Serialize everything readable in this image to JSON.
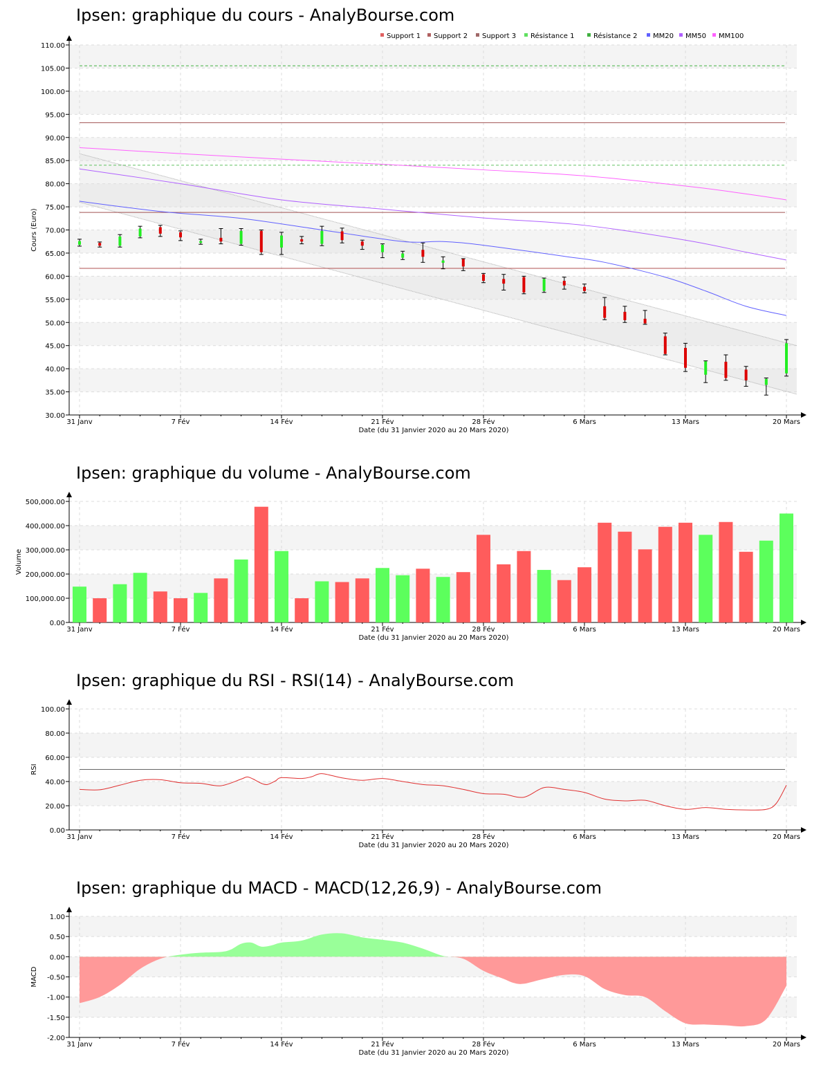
{
  "chart_data": [
    {
      "type": "candlestick",
      "title": "Ipsen: graphique du cours - AnalyBourse.com",
      "xlabel": "Date (du 31 Janvier 2020 au 20 Mars 2020)",
      "ylabel": "Cours (Euro)",
      "ylim": [
        30,
        110
      ],
      "yticks": [
        "30.00",
        "35.00",
        "40.00",
        "45.00",
        "50.00",
        "55.00",
        "60.00",
        "65.00",
        "70.00",
        "75.00",
        "80.00",
        "85.00",
        "90.00",
        "95.00",
        "100.00",
        "105.00",
        "110.00"
      ],
      "xtick_labels": [
        "31 Janv",
        "7 Fév",
        "14 Fév",
        "21 Fév",
        "28 Fév",
        "6 Mars",
        "13 Mars",
        "20 Mars"
      ],
      "xtick_days": [
        0,
        5,
        10,
        15,
        20,
        25,
        30,
        35
      ],
      "legend": [
        "Support 1",
        "Support 2",
        "Support 3",
        "Résistance 1",
        "Résistance 2",
        "MM20",
        "MM50",
        "MM100"
      ],
      "legend_colors": [
        "#e06060",
        "#b06060",
        "#a06868",
        "#60e060",
        "#40b040",
        "#6060ff",
        "#b060ff",
        "#ff60ff"
      ],
      "legend_position": "top-right",
      "grid": true,
      "levels": [
        {
          "name": "Support 1",
          "value": 61.7,
          "color": "#b05050",
          "dash": false
        },
        {
          "name": "Support 2",
          "value": 73.8,
          "color": "#a05050",
          "dash": false
        },
        {
          "name": "Support 3",
          "value": 93.2,
          "color": "#a05050",
          "dash": false
        },
        {
          "name": "Résistance 1",
          "value": 84.0,
          "color": "#60c060",
          "dash": true
        },
        {
          "name": "Résistance 2",
          "value": 105.5,
          "color": "#40b040",
          "dash": true
        }
      ],
      "channel": {
        "upper": [
          86.5,
          45.0
        ],
        "lower": [
          76.0,
          34.5
        ]
      },
      "series": [
        {
          "name": "MM20",
          "color": "#6060ff",
          "x": [
            0,
            4,
            8,
            12,
            16,
            18,
            20,
            24,
            26,
            29,
            31,
            33,
            35
          ],
          "values": [
            76.2,
            74.0,
            72.5,
            70.0,
            67.5,
            67.5,
            66.7,
            64.3,
            63.0,
            59.8,
            56.8,
            53.5,
            51.5
          ]
        },
        {
          "name": "MM50",
          "color": "#b060ff",
          "x": [
            0,
            5,
            10,
            15,
            20,
            25,
            30,
            33,
            35
          ],
          "values": [
            83.2,
            80.0,
            76.5,
            74.5,
            72.6,
            71.0,
            67.8,
            65.2,
            63.5
          ]
        },
        {
          "name": "MM100",
          "color": "#ff60ff",
          "x": [
            0,
            5,
            10,
            15,
            20,
            25,
            30,
            33,
            35
          ],
          "values": [
            87.8,
            86.5,
            85.3,
            84.2,
            83.0,
            81.7,
            79.5,
            77.8,
            76.5
          ]
        }
      ],
      "candles": [
        {
          "d": 0,
          "o": 66.8,
          "c": 67.6,
          "h": 68.0,
          "l": 66.5
        },
        {
          "d": 1,
          "o": 67.2,
          "c": 66.6,
          "h": 67.4,
          "l": 66.3
        },
        {
          "d": 2,
          "o": 66.6,
          "c": 68.6,
          "h": 69.0,
          "l": 66.3
        },
        {
          "d": 3,
          "o": 68.6,
          "c": 70.3,
          "h": 70.8,
          "l": 68.3
        },
        {
          "d": 4,
          "o": 70.6,
          "c": 69.2,
          "h": 71.0,
          "l": 68.6
        },
        {
          "d": 5,
          "o": 69.5,
          "c": 68.4,
          "h": 69.8,
          "l": 67.7
        },
        {
          "d": 6,
          "o": 67.2,
          "c": 67.6,
          "h": 68.0,
          "l": 66.9
        },
        {
          "d": 7,
          "o": 68.3,
          "c": 67.5,
          "h": 70.3,
          "l": 67.0
        },
        {
          "d": 8,
          "o": 67.0,
          "c": 69.8,
          "h": 70.3,
          "l": 66.7
        },
        {
          "d": 9,
          "o": 69.8,
          "c": 65.2,
          "h": 70.0,
          "l": 64.7
        },
        {
          "d": 10,
          "o": 66.2,
          "c": 68.8,
          "h": 69.5,
          "l": 64.7
        },
        {
          "d": 11,
          "o": 68.0,
          "c": 67.5,
          "h": 68.6,
          "l": 67.0
        },
        {
          "d": 12,
          "o": 67.0,
          "c": 69.8,
          "h": 70.8,
          "l": 66.6
        },
        {
          "d": 13,
          "o": 69.7,
          "c": 67.8,
          "h": 70.4,
          "l": 67.2
        },
        {
          "d": 14,
          "o": 67.5,
          "c": 66.6,
          "h": 67.8,
          "l": 65.8
        },
        {
          "d": 15,
          "o": 65.2,
          "c": 66.8,
          "h": 67.0,
          "l": 64.0
        },
        {
          "d": 16,
          "o": 64.0,
          "c": 64.9,
          "h": 65.4,
          "l": 63.6
        },
        {
          "d": 17,
          "o": 65.7,
          "c": 64.2,
          "h": 67.2,
          "l": 63.0
        },
        {
          "d": 18,
          "o": 62.9,
          "c": 63.4,
          "h": 64.2,
          "l": 61.6
        },
        {
          "d": 19,
          "o": 63.7,
          "c": 62.1,
          "h": 63.8,
          "l": 61.2
        },
        {
          "d": 20,
          "o": 60.4,
          "c": 59.0,
          "h": 60.6,
          "l": 58.6
        },
        {
          "d": 21,
          "o": 59.4,
          "c": 58.4,
          "h": 60.4,
          "l": 57.0
        },
        {
          "d": 22,
          "o": 59.8,
          "c": 56.5,
          "h": 60.0,
          "l": 56.2
        },
        {
          "d": 23,
          "o": 56.8,
          "c": 59.4,
          "h": 59.6,
          "l": 56.5
        },
        {
          "d": 24,
          "o": 59.0,
          "c": 58.0,
          "h": 59.8,
          "l": 57.2
        },
        {
          "d": 25,
          "o": 57.7,
          "c": 56.8,
          "h": 58.3,
          "l": 56.4
        },
        {
          "d": 26,
          "o": 53.5,
          "c": 51.0,
          "h": 55.4,
          "l": 50.6
        },
        {
          "d": 27,
          "o": 52.3,
          "c": 50.5,
          "h": 53.5,
          "l": 50.0
        },
        {
          "d": 28,
          "o": 50.8,
          "c": 49.8,
          "h": 52.6,
          "l": 49.6
        },
        {
          "d": 29,
          "o": 47.0,
          "c": 43.2,
          "h": 47.7,
          "l": 43.0
        },
        {
          "d": 30,
          "o": 44.5,
          "c": 40.2,
          "h": 45.5,
          "l": 39.4
        },
        {
          "d": 31,
          "o": 38.7,
          "c": 41.6,
          "h": 41.7,
          "l": 37.0
        },
        {
          "d": 32,
          "o": 41.5,
          "c": 38.0,
          "h": 43.0,
          "l": 37.5
        },
        {
          "d": 33,
          "o": 39.8,
          "c": 37.5,
          "h": 40.5,
          "l": 36.2
        },
        {
          "d": 34,
          "o": 36.5,
          "c": 37.8,
          "h": 38.0,
          "l": 34.3
        },
        {
          "d": 35,
          "o": 39.0,
          "c": 45.5,
          "h": 46.3,
          "l": 38.4
        }
      ]
    },
    {
      "type": "bar",
      "title": "Ipsen: graphique du volume - AnalyBourse.com",
      "xlabel": "Date (du 31 Janvier 2020 au 20 Mars 2020)",
      "ylabel": "Volume",
      "ylim": [
        0,
        500000
      ],
      "yticks": [
        "0.00",
        "100,000.00",
        "200,000.00",
        "300,000.00",
        "400,000.00",
        "500,000.00"
      ],
      "xtick_labels": [
        "31 Janv",
        "7 Fév",
        "14 Fév",
        "21 Fév",
        "28 Fév",
        "6 Mars",
        "13 Mars",
        "20 Mars"
      ],
      "xtick_days": [
        0,
        5,
        10,
        15,
        20,
        25,
        30,
        35
      ],
      "grid": true,
      "up_color": "#5cff5c",
      "down_color": "#ff5c5c",
      "values": [
        148000,
        100000,
        158000,
        205000,
        128000,
        100000,
        122000,
        182000,
        260000,
        478000,
        295000,
        100000,
        170000,
        167000,
        182000,
        225000,
        195000,
        222000,
        188000,
        208000,
        362000,
        240000,
        295000,
        217000,
        175000,
        228000,
        412000,
        375000,
        302000,
        395000,
        412000,
        362000,
        415000,
        292000,
        338000,
        450000
      ],
      "up": [
        true,
        false,
        true,
        true,
        false,
        false,
        true,
        false,
        true,
        false,
        true,
        false,
        true,
        false,
        false,
        true,
        true,
        false,
        true,
        false,
        false,
        false,
        false,
        true,
        false,
        false,
        false,
        false,
        false,
        false,
        false,
        true,
        false,
        false,
        true,
        true
      ]
    },
    {
      "type": "line",
      "title": "Ipsen: graphique du RSI - RSI(14) - AnalyBourse.com",
      "xlabel": "Date (du 31 Janvier 2020 au 20 Mars 2020)",
      "ylabel": "RSI",
      "ylim": [
        0,
        100
      ],
      "yticks": [
        "0.00",
        "20.00",
        "40.00",
        "60.00",
        "80.00",
        "100.00"
      ],
      "xtick_labels": [
        "31 Janv",
        "7 Fév",
        "14 Fév",
        "21 Fév",
        "28 Fév",
        "6 Mars",
        "13 Mars",
        "20 Mars"
      ],
      "xtick_days": [
        0,
        5,
        10,
        15,
        20,
        25,
        30,
        35
      ],
      "grid": true,
      "reference_line": 50,
      "series": [
        {
          "name": "RSI",
          "color": "#e03030",
          "x": [
            0,
            1,
            2,
            3,
            4,
            5,
            6,
            7,
            8,
            8.3,
            8.6,
            9,
            9.3,
            9.7,
            10,
            11,
            11.5,
            12,
            13,
            14,
            15,
            16,
            17,
            18,
            19,
            20,
            21,
            22,
            23,
            24,
            25,
            26,
            27,
            28,
            29,
            30,
            31,
            32,
            33,
            34,
            34.5,
            35
          ],
          "values": [
            33.5,
            33.2,
            37,
            41,
            41.5,
            39,
            38.5,
            36.5,
            42,
            43.8,
            42,
            38.5,
            37.5,
            40.5,
            43.2,
            42.5,
            44,
            46.5,
            43,
            41,
            42.5,
            40,
            37.5,
            36.5,
            33.5,
            30,
            29.5,
            27,
            35,
            33.5,
            31,
            25.5,
            24,
            24.5,
            20,
            17,
            18.5,
            17,
            16.5,
            17,
            22,
            37
          ]
        }
      ]
    },
    {
      "type": "area",
      "title": "Ipsen: graphique du MACD - MACD(12,26,9) - AnalyBourse.com",
      "xlabel": "Date (du 31 Janvier 2020 au 20 Mars 2020)",
      "ylabel": "MACD",
      "ylim": [
        -2,
        1
      ],
      "yticks": [
        "-2.00",
        "-1.50",
        "-1.00",
        "-0.50",
        "0.00",
        "0.50",
        "1.00"
      ],
      "xtick_labels": [
        "31 Janv",
        "7 Fév",
        "14 Fév",
        "21 Fév",
        "28 Fév",
        "6 Mars",
        "13 Mars",
        "20 Mars"
      ],
      "xtick_days": [
        0,
        5,
        10,
        15,
        20,
        25,
        30,
        35
      ],
      "grid": true,
      "positive_color": "#99ff99",
      "negative_color": "#ff9999",
      "series": [
        {
          "name": "MACD",
          "x": [
            0,
            1,
            2,
            3,
            4,
            5,
            6,
            7,
            7.5,
            8,
            8.5,
            9,
            9.5,
            10,
            11,
            12,
            13,
            14,
            15,
            16,
            17,
            18,
            19,
            20,
            21,
            21.5,
            22,
            23,
            24,
            25,
            26,
            27,
            28,
            29,
            30,
            31,
            32,
            33,
            34,
            35
          ],
          "values": [
            -1.15,
            -1.0,
            -0.7,
            -0.3,
            -0.05,
            0.05,
            0.1,
            0.12,
            0.18,
            0.32,
            0.35,
            0.25,
            0.28,
            0.35,
            0.4,
            0.55,
            0.58,
            0.48,
            0.42,
            0.35,
            0.2,
            0.02,
            -0.05,
            -0.35,
            -0.55,
            -0.65,
            -0.67,
            -0.55,
            -0.45,
            -0.48,
            -0.8,
            -0.95,
            -1.0,
            -1.35,
            -1.65,
            -1.68,
            -1.7,
            -1.72,
            -1.55,
            -0.72
          ]
        }
      ]
    }
  ]
}
